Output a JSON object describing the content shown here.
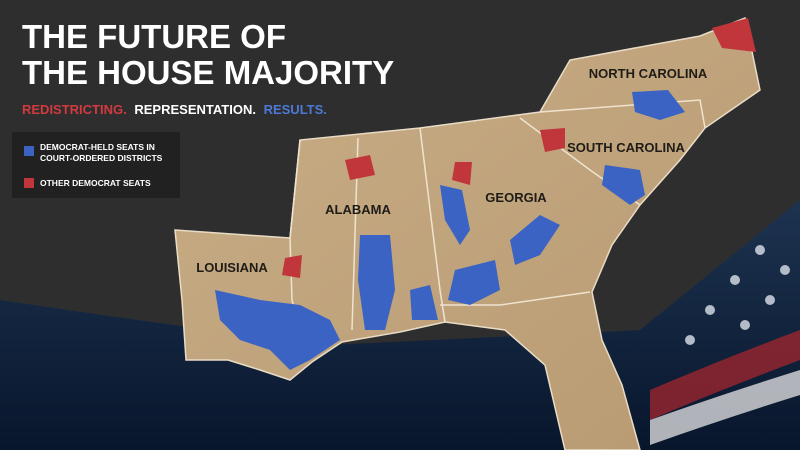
{
  "header": {
    "title_lines": [
      "THE FUTURE OF",
      "THE HOUSE MAJORITY"
    ],
    "subtitle": [
      "REDISTRICTING.",
      "REPRESENTATION.",
      "RESULTS."
    ]
  },
  "legend": [
    {
      "label": "DEMOCRAT-HELD SEATS IN COURT-ORDERED DISTRICTS"
    },
    {
      "label": "OTHER DEMOCRAT SEATS"
    }
  ],
  "states": [
    "NORTH CAROLINA",
    "SOUTH CAROLINA",
    "GEORGIA",
    "ALABAMA",
    "LOUISIANA"
  ]
}
